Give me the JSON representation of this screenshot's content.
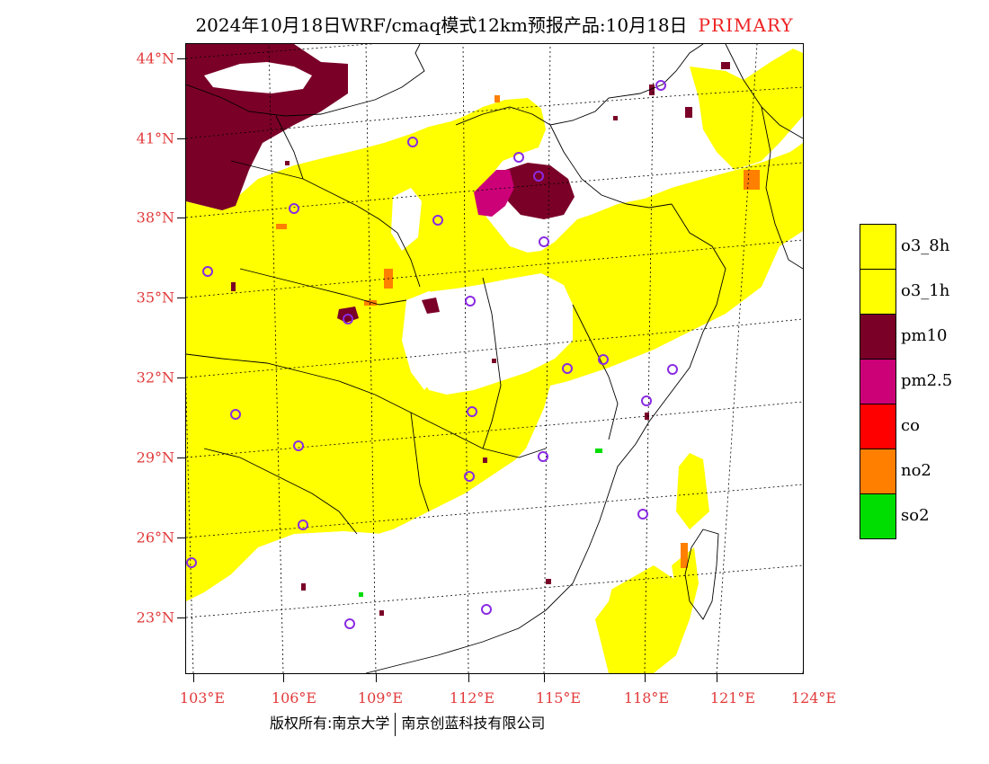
{
  "title": {
    "main": "2024年10月18日WRF/cmaq模式12km预报产品:10月18日",
    "tag": "PRIMARY"
  },
  "axes": {
    "lat_labels": [
      "44°N",
      "41°N",
      "38°N",
      "35°N",
      "32°N",
      "29°N",
      "26°N",
      "23°N"
    ],
    "lon_labels": [
      "103°E",
      "106°E",
      "109°E",
      "112°E",
      "115°E",
      "118°E",
      "121°E",
      "124°E"
    ]
  },
  "legend": {
    "items": [
      {
        "label": "o3_8h",
        "color": "#ffff00"
      },
      {
        "label": "o3_1h",
        "color": "#ffff00"
      },
      {
        "label": "pm10",
        "color": "#7a0028"
      },
      {
        "label": "pm2.5",
        "color": "#cc0077"
      },
      {
        "label": "co",
        "color": "#ff0000"
      },
      {
        "label": "no2",
        "color": "#ff7f00"
      },
      {
        "label": "so2",
        "color": "#00dd00"
      }
    ]
  },
  "footer": {
    "left": "版权所有:南京大学",
    "right": "南京创蓝科技有限公司"
  },
  "colors": {
    "ozone": "#ffff00",
    "pm10": "#7a0028",
    "pm25": "#cc0077",
    "no2": "#ff7f00",
    "so2": "#00dd00",
    "station_marker": "#8a2be2",
    "axis_label": "#e23a3a"
  }
}
